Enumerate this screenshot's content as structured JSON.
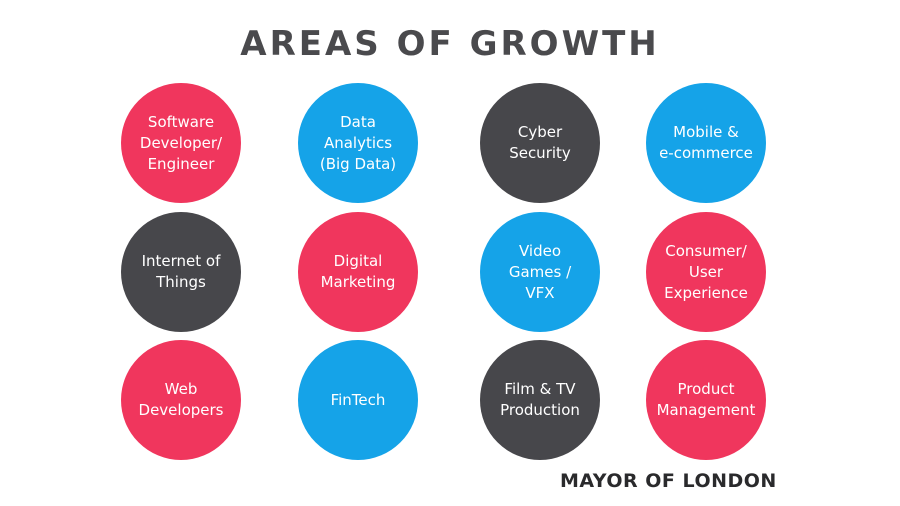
{
  "title": "AREAS OF GROWTH",
  "colors": {
    "pink": "#f0365d",
    "blue": "#15a3e8",
    "dark": "#47474b",
    "title_text": "#4a4a4d"
  },
  "circles": [
    {
      "label": "Software\nDeveloper/\nEngineer",
      "color": "pink"
    },
    {
      "label": "Data\nAnalytics\n(Big Data)",
      "color": "blue"
    },
    {
      "label": "Cyber\nSecurity",
      "color": "dark"
    },
    {
      "label": "Mobile &\ne-commerce",
      "color": "blue"
    },
    {
      "label": "Internet of\nThings",
      "color": "dark"
    },
    {
      "label": "Digital\nMarketing",
      "color": "pink"
    },
    {
      "label": "Video\nGames /\nVFX",
      "color": "blue"
    },
    {
      "label": "Consumer/\nUser\nExperience",
      "color": "pink"
    },
    {
      "label": "Web\nDevelopers",
      "color": "pink"
    },
    {
      "label": "FinTech",
      "color": "blue"
    },
    {
      "label": "Film & TV\nProduction",
      "color": "dark"
    },
    {
      "label": "Product\nManagement",
      "color": "pink"
    }
  ],
  "brand": "MAYOR OF LONDON"
}
